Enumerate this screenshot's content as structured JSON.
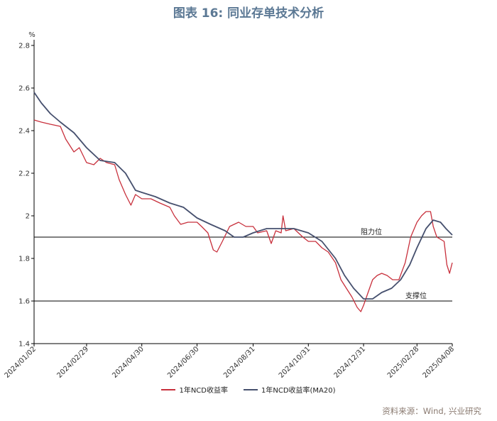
{
  "title": "图表 16: 同业存单技术分析",
  "source": "资料来源：Wind, 兴业研究",
  "chart_data": {
    "type": "line",
    "ylabel": "%",
    "ylim": [
      1.4,
      2.8
    ],
    "yticks": [
      "1.4",
      "1.6",
      "1.8",
      "2",
      "2.2",
      "2.4",
      "2.6",
      "2.8"
    ],
    "xticks": [
      "2024/01/02",
      "2024/02/29",
      "2024/04/30",
      "2024/06/30",
      "2024/08/31",
      "2024/10/31",
      "2024/12/31",
      "2025/02/28",
      "2025/04/08"
    ],
    "colors": {
      "ncd": "#c8303c",
      "ma20": "#46506e",
      "axis": "#000000"
    },
    "reference_lines": [
      {
        "y": 1.9,
        "label": "阻力位"
      },
      {
        "y": 1.6,
        "label": "支撑位"
      }
    ],
    "series": [
      {
        "name": "1年NCD收益率",
        "points": [
          [
            "2024/01/02",
            2.45
          ],
          [
            "2024/01/10",
            2.44
          ],
          [
            "2024/01/20",
            2.43
          ],
          [
            "2024/01/31",
            2.42
          ],
          [
            "2024/02/06",
            2.36
          ],
          [
            "2024/02/15",
            2.3
          ],
          [
            "2024/02/21",
            2.32
          ],
          [
            "2024/02/29",
            2.25
          ],
          [
            "2024/03/08",
            2.24
          ],
          [
            "2024/03/15",
            2.27
          ],
          [
            "2024/03/22",
            2.25
          ],
          [
            "2024/03/31",
            2.24
          ],
          [
            "2024/04/05",
            2.17
          ],
          [
            "2024/04/12",
            2.1
          ],
          [
            "2024/04/18",
            2.05
          ],
          [
            "2024/04/23",
            2.1
          ],
          [
            "2024/04/30",
            2.08
          ],
          [
            "2024/05/10",
            2.08
          ],
          [
            "2024/05/20",
            2.06
          ],
          [
            "2024/05/31",
            2.04
          ],
          [
            "2024/06/05",
            2.0
          ],
          [
            "2024/06/12",
            1.96
          ],
          [
            "2024/06/20",
            1.97
          ],
          [
            "2024/06/30",
            1.97
          ],
          [
            "2024/07/05",
            1.95
          ],
          [
            "2024/07/12",
            1.92
          ],
          [
            "2024/07/18",
            1.84
          ],
          [
            "2024/07/22",
            1.83
          ],
          [
            "2024/07/28",
            1.88
          ],
          [
            "2024/08/05",
            1.95
          ],
          [
            "2024/08/15",
            1.97
          ],
          [
            "2024/08/23",
            1.95
          ],
          [
            "2024/08/31",
            1.95
          ],
          [
            "2024/09/05",
            1.92
          ],
          [
            "2024/09/15",
            1.93
          ],
          [
            "2024/09/20",
            1.87
          ],
          [
            "2024/09/25",
            1.93
          ],
          [
            "2024/10/01",
            1.92
          ],
          [
            "2024/10/03",
            2.0
          ],
          [
            "2024/10/06",
            1.93
          ],
          [
            "2024/10/15",
            1.94
          ],
          [
            "2024/10/25",
            1.9
          ],
          [
            "2024/10/31",
            1.88
          ],
          [
            "2024/11/08",
            1.88
          ],
          [
            "2024/11/15",
            1.85
          ],
          [
            "2024/11/22",
            1.83
          ],
          [
            "2024/11/30",
            1.78
          ],
          [
            "2024/12/06",
            1.7
          ],
          [
            "2024/12/12",
            1.66
          ],
          [
            "2024/12/18",
            1.62
          ],
          [
            "2024/12/24",
            1.57
          ],
          [
            "2024/12/28",
            1.55
          ],
          [
            "2024/12/31",
            1.58
          ],
          [
            "2025/01/05",
            1.64
          ],
          [
            "2025/01/10",
            1.7
          ],
          [
            "2025/01/15",
            1.72
          ],
          [
            "2025/01/20",
            1.73
          ],
          [
            "2025/01/26",
            1.72
          ],
          [
            "2025/02/01",
            1.7
          ],
          [
            "2025/02/08",
            1.7
          ],
          [
            "2025/02/15",
            1.78
          ],
          [
            "2025/02/21",
            1.9
          ],
          [
            "2025/02/28",
            1.97
          ],
          [
            "2025/03/05",
            2.0
          ],
          [
            "2025/03/10",
            2.02
          ],
          [
            "2025/03/15",
            2.02
          ],
          [
            "2025/03/18",
            1.95
          ],
          [
            "2025/03/22",
            1.9
          ],
          [
            "2025/03/26",
            1.89
          ],
          [
            "2025/03/30",
            1.88
          ],
          [
            "2025/04/02",
            1.77
          ],
          [
            "2025/04/05",
            1.73
          ],
          [
            "2025/04/08",
            1.78
          ]
        ]
      },
      {
        "name": "1年NCD收益率(MA20)",
        "points": [
          [
            "2024/01/02",
            2.58
          ],
          [
            "2024/01/10",
            2.53
          ],
          [
            "2024/01/20",
            2.48
          ],
          [
            "2024/01/31",
            2.44
          ],
          [
            "2024/02/15",
            2.39
          ],
          [
            "2024/02/29",
            2.32
          ],
          [
            "2024/03/15",
            2.26
          ],
          [
            "2024/03/31",
            2.25
          ],
          [
            "2024/04/12",
            2.2
          ],
          [
            "2024/04/23",
            2.12
          ],
          [
            "2024/04/30",
            2.11
          ],
          [
            "2024/05/15",
            2.09
          ],
          [
            "2024/05/31",
            2.06
          ],
          [
            "2024/06/15",
            2.04
          ],
          [
            "2024/06/30",
            1.99
          ],
          [
            "2024/07/15",
            1.96
          ],
          [
            "2024/07/31",
            1.93
          ],
          [
            "2024/08/10",
            1.9
          ],
          [
            "2024/08/20",
            1.9
          ],
          [
            "2024/08/31",
            1.92
          ],
          [
            "2024/09/15",
            1.94
          ],
          [
            "2024/09/30",
            1.94
          ],
          [
            "2024/10/15",
            1.94
          ],
          [
            "2024/10/31",
            1.92
          ],
          [
            "2024/11/15",
            1.88
          ],
          [
            "2024/11/30",
            1.8
          ],
          [
            "2024/12/10",
            1.72
          ],
          [
            "2024/12/20",
            1.66
          ],
          [
            "2024/12/31",
            1.61
          ],
          [
            "2025/01/10",
            1.61
          ],
          [
            "2025/01/20",
            1.64
          ],
          [
            "2025/01/31",
            1.66
          ],
          [
            "2025/02/10",
            1.7
          ],
          [
            "2025/02/20",
            1.77
          ],
          [
            "2025/02/28",
            1.85
          ],
          [
            "2025/03/10",
            1.94
          ],
          [
            "2025/03/18",
            1.98
          ],
          [
            "2025/03/26",
            1.97
          ],
          [
            "2025/04/01",
            1.94
          ],
          [
            "2025/04/08",
            1.91
          ]
        ]
      }
    ]
  }
}
